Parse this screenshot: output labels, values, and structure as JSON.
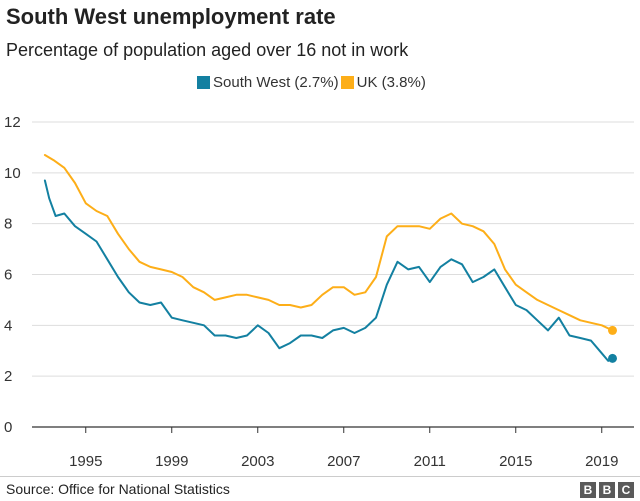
{
  "chart_data": {
    "type": "line",
    "title": "South West unemployment rate",
    "subtitle": "Percentage of population aged over 16 not in work",
    "xlabel": "",
    "ylabel": "",
    "xlim": [
      1992.5,
      2020.5
    ],
    "ylim": [
      0,
      12
    ],
    "y_ticks": [
      0,
      2,
      4,
      6,
      8,
      10,
      12
    ],
    "x_ticks": [
      1995,
      1999,
      2003,
      2007,
      2011,
      2015,
      2019
    ],
    "grid": "horizontal",
    "legend_position": "top",
    "series": [
      {
        "name": "South West (2.7%)",
        "color": "#1380a1",
        "x": [
          1993.1,
          1993.3,
          1993.6,
          1994.0,
          1994.5,
          1995.0,
          1995.5,
          1996.0,
          1996.5,
          1997.0,
          1997.5,
          1998.0,
          1998.5,
          1999.0,
          1999.5,
          2000.0,
          2000.5,
          2001.0,
          2001.5,
          2002.0,
          2002.5,
          2003.0,
          2003.5,
          2004.0,
          2004.5,
          2005.0,
          2005.5,
          2006.0,
          2006.5,
          2007.0,
          2007.5,
          2008.0,
          2008.5,
          2009.0,
          2009.5,
          2010.0,
          2010.5,
          2011.0,
          2011.5,
          2012.0,
          2012.5,
          2013.0,
          2013.5,
          2014.0,
          2014.5,
          2015.0,
          2015.5,
          2016.0,
          2016.5,
          2017.0,
          2017.5,
          2018.0,
          2018.5,
          2019.0,
          2019.3,
          2019.5
        ],
        "values": [
          9.7,
          9.0,
          8.3,
          8.4,
          7.9,
          7.6,
          7.3,
          6.6,
          5.9,
          5.3,
          4.9,
          4.8,
          4.9,
          4.3,
          4.2,
          4.1,
          4.0,
          3.6,
          3.6,
          3.5,
          3.6,
          4.0,
          3.7,
          3.1,
          3.3,
          3.6,
          3.6,
          3.5,
          3.8,
          3.9,
          3.7,
          3.9,
          4.3,
          5.6,
          6.5,
          6.2,
          6.3,
          5.7,
          6.3,
          6.6,
          6.4,
          5.7,
          5.9,
          6.2,
          5.5,
          4.8,
          4.6,
          4.2,
          3.8,
          4.3,
          3.6,
          3.5,
          3.4,
          2.9,
          2.6,
          2.7
        ]
      },
      {
        "name": "UK (3.8%)",
        "color": "#fdae18",
        "x": [
          1993.1,
          1993.5,
          1994.0,
          1994.5,
          1995.0,
          1995.5,
          1996.0,
          1996.5,
          1997.0,
          1997.5,
          1998.0,
          1998.5,
          1999.0,
          1999.5,
          2000.0,
          2000.5,
          2001.0,
          2001.5,
          2002.0,
          2002.5,
          2003.0,
          2003.5,
          2004.0,
          2004.5,
          2005.0,
          2005.5,
          2006.0,
          2006.5,
          2007.0,
          2007.5,
          2008.0,
          2008.5,
          2009.0,
          2009.5,
          2010.0,
          2010.5,
          2011.0,
          2011.5,
          2012.0,
          2012.5,
          2013.0,
          2013.5,
          2014.0,
          2014.5,
          2015.0,
          2015.5,
          2016.0,
          2016.5,
          2017.0,
          2017.5,
          2018.0,
          2018.5,
          2019.0,
          2019.5
        ],
        "values": [
          10.7,
          10.5,
          10.2,
          9.6,
          8.8,
          8.5,
          8.3,
          7.6,
          7.0,
          6.5,
          6.3,
          6.2,
          6.1,
          5.9,
          5.5,
          5.3,
          5.0,
          5.1,
          5.2,
          5.2,
          5.1,
          5.0,
          4.8,
          4.8,
          4.7,
          4.8,
          5.2,
          5.5,
          5.5,
          5.2,
          5.3,
          5.9,
          7.5,
          7.9,
          7.9,
          7.9,
          7.8,
          8.2,
          8.4,
          8.0,
          7.9,
          7.7,
          7.2,
          6.2,
          5.6,
          5.3,
          5.0,
          4.8,
          4.6,
          4.4,
          4.2,
          4.1,
          4.0,
          3.8
        ]
      }
    ]
  },
  "source": "Source: Office for National Statistics",
  "logo_letters": [
    "B",
    "B",
    "C"
  ]
}
